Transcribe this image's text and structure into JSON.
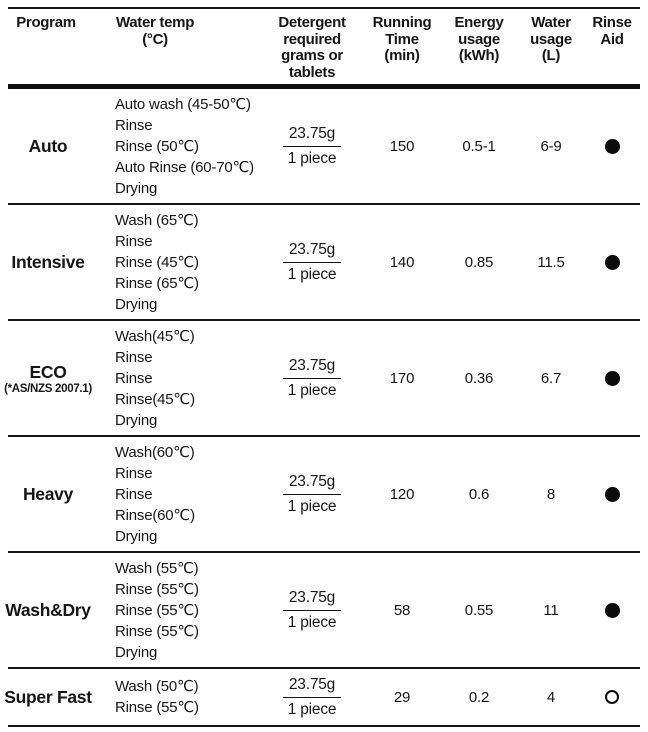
{
  "table": {
    "headers": [
      "Program",
      "Water temp\n(°C)",
      "Detergent\nrequired\ngrams or\ntablets",
      "Running\nTime\n(min)",
      "Energy\nusage\n(kWh)",
      "Water\nusage\n(L)",
      "Rinse\nAid"
    ],
    "rows": [
      {
        "program": "Auto",
        "program_note": "",
        "temps": "Auto wash (45-50℃)\nRinse\nRinse (50℃)\nAuto Rinse (60-70℃)\nDrying",
        "detergent_grams": "23.75g",
        "detergent_tablets": "1 piece",
        "running_time": "150",
        "energy_usage": "0.5-1",
        "water_usage": "6-9",
        "rinse_aid": "filled"
      },
      {
        "program": "Intensive",
        "program_note": "",
        "temps": "Wash (65℃)\nRinse\nRinse (45℃)\nRinse (65℃)\nDrying",
        "detergent_grams": "23.75g",
        "detergent_tablets": "1 piece",
        "running_time": "140",
        "energy_usage": "0.85",
        "water_usage": "11.5",
        "rinse_aid": "filled"
      },
      {
        "program": "ECO",
        "program_note": "(*AS/NZS 2007.1)",
        "temps": "Wash(45℃)\nRinse\nRinse\nRinse(45℃)\nDrying",
        "detergent_grams": "23.75g",
        "detergent_tablets": "1 piece",
        "running_time": "170",
        "energy_usage": "0.36",
        "water_usage": "6.7",
        "rinse_aid": "filled"
      },
      {
        "program": "Heavy",
        "program_note": "",
        "temps": "Wash(60℃)\nRinse\nRinse\nRinse(60℃)\nDrying",
        "detergent_grams": "23.75g",
        "detergent_tablets": "1 piece",
        "running_time": "120",
        "energy_usage": "0.6",
        "water_usage": "8",
        "rinse_aid": "filled"
      },
      {
        "program": "Wash&Dry",
        "program_note": "",
        "temps": "Wash (55℃)\nRinse (55℃)\nRinse (55℃)\nRinse (55℃)\nDrying",
        "detergent_grams": "23.75g",
        "detergent_tablets": "1 piece",
        "running_time": "58",
        "energy_usage": "0.55",
        "water_usage": "11",
        "rinse_aid": "filled"
      },
      {
        "program": "Super Fast",
        "program_note": "",
        "temps": "Wash (50℃)\nRinse (55℃)",
        "detergent_grams": "23.75g",
        "detergent_tablets": "1 piece",
        "running_time": "29",
        "energy_usage": "0.2",
        "water_usage": "4",
        "rinse_aid": "open"
      }
    ]
  }
}
